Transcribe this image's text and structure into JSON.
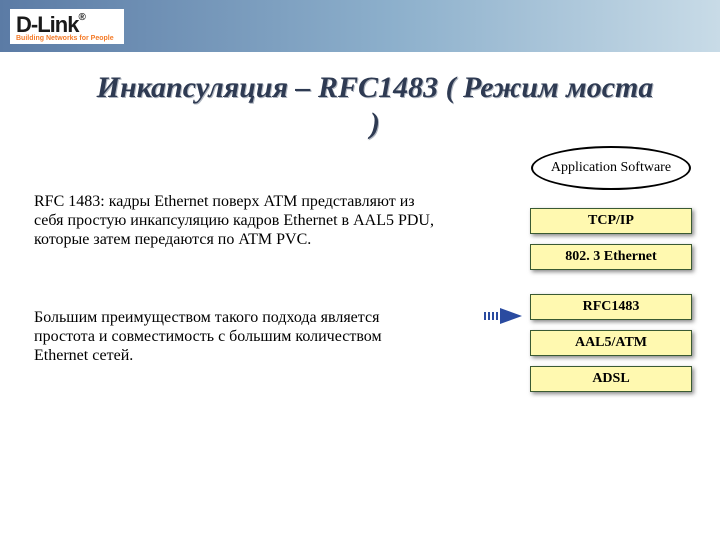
{
  "logo": {
    "main": "D-Link",
    "reg": "®",
    "sub": "Building Networks for People"
  },
  "title": "Инкапсуляция – RFC1483 ( Режим моста )",
  "paragraph1": "RFC 1483: кадры Ethernet поверх ATM представляют из себя простую инкапсуляцию кадров Ethernet  в AAL5 PDU, которые затем передаются по ATM PVC.",
  "paragraph2": "Большим преимуществом такого подхода является простота и совместимость с большим количеством Ethernet сетей.",
  "stack": {
    "type": "layered-stack",
    "oval": "Application Software",
    "boxes": [
      "TCP/IP",
      "802. 3 Ethernet",
      "RFC1483",
      "AAL5/ATM",
      "ADSL"
    ],
    "highlight_index": 2,
    "box_bg": "#fff9b0",
    "box_border": "#3a5a33",
    "oval_border": "#000000",
    "arrow_color": "#2a4ba0"
  },
  "colors": {
    "title_color": "#2e3a52",
    "topbar_gradient": [
      "#5b7ba5",
      "#8db0cc",
      "#c8dbe7"
    ]
  }
}
